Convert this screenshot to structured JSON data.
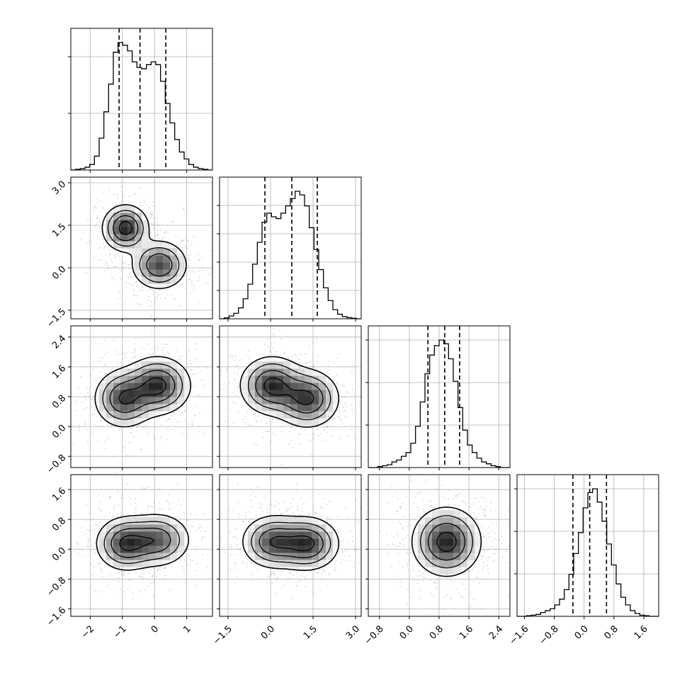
{
  "chart_data": {
    "type": "corner",
    "grid": true,
    "colors": {
      "line": "#000000",
      "grid": "#b0b0b0",
      "scatter": "#888888",
      "density_dark": "#2a2a2a"
    },
    "variables": [
      {
        "range": [
          -2.6,
          1.8
        ],
        "ticks": [
          -2,
          -1,
          0,
          1
        ],
        "tick_labels": [
          "−2",
          "−1",
          "0",
          "1"
        ],
        "mean": -0.4,
        "std": 0.75,
        "quantiles": [
          -1.1,
          -0.45,
          0.35
        ],
        "label_axes": [
          "x"
        ]
      },
      {
        "range": [
          -1.8,
          3.2
        ],
        "ticks": [
          -1.5,
          0.0,
          1.5,
          3.0
        ],
        "tick_labels": [
          "−1.5",
          "0.0",
          "1.5",
          "3.0"
        ],
        "mean": 0.7,
        "std": 0.8,
        "quantiles": [
          -0.2,
          0.75,
          1.65
        ],
        "label_axes": [
          "x",
          "y"
        ]
      },
      {
        "range": [
          -1.1,
          2.7
        ],
        "ticks": [
          -0.8,
          0.0,
          0.8,
          1.6,
          2.4
        ],
        "tick_labels": [
          "−0.8",
          "0.0",
          "0.8",
          "1.6",
          "2.4"
        ],
        "mean": 0.95,
        "std": 0.45,
        "quantiles": [
          0.5,
          0.95,
          1.35
        ],
        "label_axes": [
          "x",
          "y"
        ]
      },
      {
        "range": [
          -1.8,
          2.0
        ],
        "ticks": [
          -1.6,
          -0.8,
          0.0,
          0.8,
          1.6
        ],
        "tick_labels": [
          "−1.6",
          "−0.8",
          "0.0",
          "0.8",
          "1.6"
        ],
        "mean": 0.2,
        "std": 0.42,
        "quantiles": [
          -0.3,
          0.15,
          0.6
        ],
        "label_axes": [
          "x",
          "y"
        ]
      }
    ],
    "histograms": [
      {
        "var": 0,
        "bins": 30,
        "ytick_fracs": [
          0.4,
          0.8
        ],
        "counts": [
          0,
          0.5,
          1,
          2,
          4,
          10,
          23,
          42,
          62,
          85,
          92,
          90,
          86,
          78,
          74,
          73,
          76,
          78,
          76,
          64,
          48,
          34,
          22,
          13,
          8,
          4,
          2,
          1,
          0.5,
          0
        ]
      },
      {
        "var": 1,
        "bins": 30,
        "ytick_fracs": [
          0.2,
          0.4,
          0.6,
          0.8
        ],
        "counts": [
          0,
          0.5,
          1.5,
          3,
          6,
          11,
          19,
          30,
          42,
          53,
          58,
          56,
          55,
          58,
          62,
          66,
          70,
          68,
          62,
          50,
          38,
          27,
          17,
          10,
          5,
          2.5,
          1.2,
          0.6,
          0.3,
          0
        ]
      },
      {
        "var": 2,
        "bins": 30,
        "ytick_fracs": [
          0.3,
          0.6,
          0.9
        ],
        "counts": [
          0,
          0,
          0.5,
          1,
          1.5,
          3,
          4,
          6,
          8,
          13,
          22,
          35,
          50,
          60,
          65,
          68,
          66,
          58,
          46,
          32,
          20,
          12,
          8,
          5,
          3,
          2,
          1,
          0.5,
          0,
          0
        ]
      },
      {
        "var": 3,
        "bins": 30,
        "ytick_fracs": [
          0.3,
          0.6,
          0.9
        ],
        "counts": [
          0,
          0,
          0.3,
          0.6,
          1,
          2,
          3,
          4,
          6,
          9,
          14,
          22,
          33,
          44,
          57,
          65,
          67,
          60,
          50,
          38,
          27,
          17,
          10,
          6,
          3,
          1.5,
          0.6,
          0.3,
          0,
          0
        ]
      }
    ],
    "pairs": [
      {
        "x": 0,
        "y": 1,
        "modes": [
          {
            "x": -0.9,
            "y": 1.4,
            "sx": 0.35,
            "sy": 0.4,
            "w": 1.0
          },
          {
            "x": 0.15,
            "y": 0.1,
            "sx": 0.42,
            "sy": 0.42,
            "w": 0.85
          }
        ]
      },
      {
        "x": 0,
        "y": 2,
        "modes": [
          {
            "x": -0.95,
            "y": 0.75,
            "sx": 0.45,
            "sy": 0.38,
            "w": 0.9
          },
          {
            "x": 0.1,
            "y": 1.1,
            "sx": 0.5,
            "sy": 0.38,
            "w": 1.0
          }
        ]
      },
      {
        "x": 1,
        "y": 2,
        "modes": [
          {
            "x": 0.05,
            "y": 1.1,
            "sx": 0.55,
            "sy": 0.38,
            "w": 1.0
          },
          {
            "x": 1.3,
            "y": 0.75,
            "sx": 0.55,
            "sy": 0.38,
            "w": 0.95
          }
        ]
      },
      {
        "x": 0,
        "y": 3,
        "modes": [
          {
            "x": -0.9,
            "y": 0.15,
            "sx": 0.45,
            "sy": 0.35,
            "w": 1.0
          },
          {
            "x": 0.1,
            "y": 0.25,
            "sx": 0.5,
            "sy": 0.35,
            "w": 0.85
          }
        ]
      },
      {
        "x": 1,
        "y": 3,
        "modes": [
          {
            "x": 0.1,
            "y": 0.2,
            "sx": 0.55,
            "sy": 0.35,
            "w": 0.9
          },
          {
            "x": 1.3,
            "y": 0.15,
            "sx": 0.55,
            "sy": 0.35,
            "w": 1.0
          }
        ]
      },
      {
        "x": 2,
        "y": 3,
        "modes": [
          {
            "x": 1.0,
            "y": 0.2,
            "sx": 0.45,
            "sy": 0.45,
            "w": 1.0
          }
        ]
      }
    ]
  }
}
